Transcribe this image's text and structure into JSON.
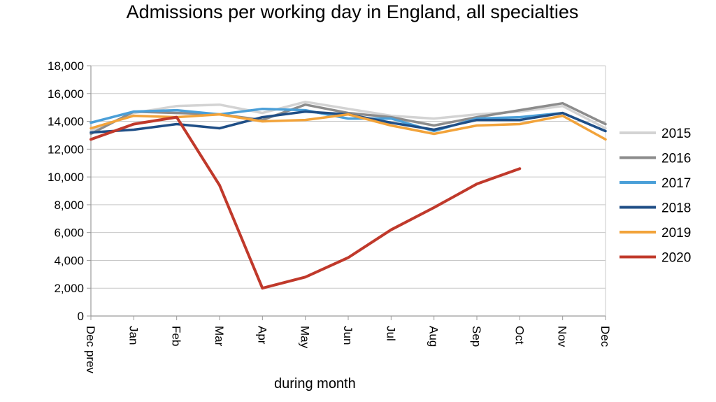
{
  "chart_data": {
    "type": "line",
    "title": "Admissions per working day in England, all specialties",
    "xlabel": "during  month",
    "ylabel": "",
    "ylim": [
      0,
      18000
    ],
    "yticks": [
      0,
      2000,
      4000,
      6000,
      8000,
      10000,
      12000,
      14000,
      16000,
      18000
    ],
    "ytick_labels": [
      "0",
      "2,000",
      "4,000",
      "6,000",
      "8,000",
      "10,000",
      "12,000",
      "14,000",
      "16,000",
      "18,000"
    ],
    "categories": [
      "Dec prev",
      "Jan",
      "Feb",
      "Mar",
      "Apr",
      "May",
      "Jun",
      "Jul",
      "Aug",
      "Sep",
      "Oct",
      "Nov",
      "Dec"
    ],
    "grid": true,
    "legend_position": "right",
    "series": [
      {
        "name": "2015",
        "color": "#d3d3d3",
        "values": [
          13300,
          14600,
          15100,
          15200,
          14600,
          15400,
          14900,
          14400,
          14200,
          14500,
          14700,
          15100,
          13500
        ]
      },
      {
        "name": "2016",
        "color": "#8c8c8c",
        "values": [
          13100,
          14700,
          14600,
          14500,
          14100,
          15200,
          14600,
          14300,
          13700,
          14300,
          14800,
          15300,
          13800
        ]
      },
      {
        "name": "2017",
        "color": "#4a9fd8",
        "values": [
          13900,
          14700,
          14800,
          14500,
          14900,
          14800,
          14200,
          14200,
          13300,
          14200,
          14300,
          14600,
          13300
        ]
      },
      {
        "name": "2018",
        "color": "#1f4e86",
        "values": [
          13200,
          13400,
          13800,
          13500,
          14300,
          14700,
          14500,
          13900,
          13400,
          14100,
          14100,
          14600,
          13300
        ]
      },
      {
        "name": "2019",
        "color": "#f2a33a",
        "values": [
          13500,
          14400,
          14300,
          14500,
          14000,
          14100,
          14500,
          13700,
          13100,
          13700,
          13800,
          14400,
          12700
        ]
      },
      {
        "name": "2020",
        "color": "#c0392b",
        "values": [
          12700,
          13800,
          14300,
          9400,
          2000,
          2800,
          4200,
          6200,
          7800,
          9500,
          10600,
          null,
          null
        ]
      }
    ]
  }
}
